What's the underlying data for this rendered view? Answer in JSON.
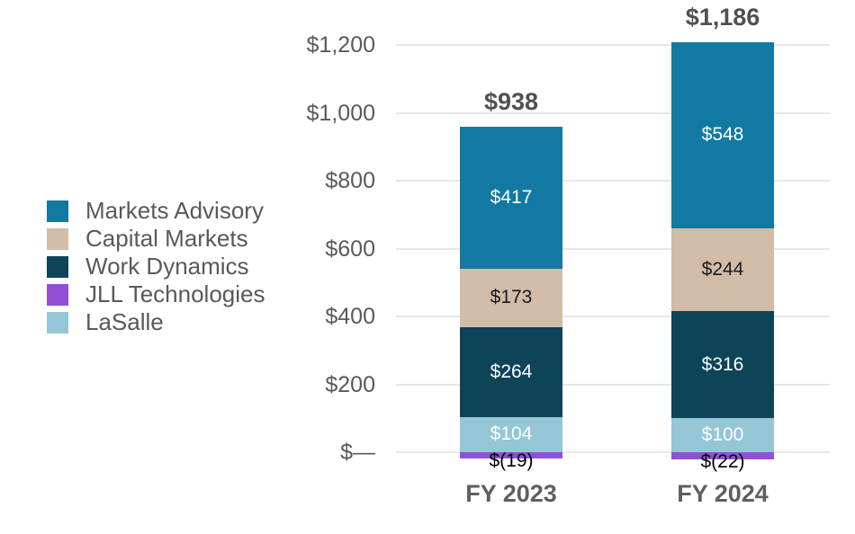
{
  "page": {
    "background_color": "#FFFFFF",
    "axis_text_color": "#58595B",
    "gridline_color": "#E7E7E7",
    "total_text_color": "#4F5052",
    "category_text_color": "#5E5F61"
  },
  "chart_data": {
    "type": "bar",
    "stacked": true,
    "title": "",
    "xlabel": "",
    "ylabel": "",
    "categories": [
      "FY 2023",
      "FY 2024"
    ],
    "series": [
      {
        "name": "Markets Advisory",
        "color": "#1279A3",
        "label_color": "#FFFFFF",
        "values": [
          417,
          548
        ],
        "labels": [
          "$417",
          "$548"
        ]
      },
      {
        "name": "Capital Markets",
        "color": "#D2BCA8",
        "label_color": "#1A1A1A",
        "values": [
          173,
          244
        ],
        "labels": [
          "$173",
          "$244"
        ]
      },
      {
        "name": "Work Dynamics",
        "color": "#0D4458",
        "label_color": "#FFFFFF",
        "values": [
          264,
          316
        ],
        "labels": [
          "$264",
          "$316"
        ]
      },
      {
        "name": "JLL Technologies",
        "color": "#9150D4",
        "label_color": "#000000",
        "values": [
          -19,
          -22
        ],
        "labels": [
          "$(19)",
          "$(22)"
        ]
      },
      {
        "name": "LaSalle",
        "color": "#95C6D6",
        "label_color": "#FFFFFF",
        "values": [
          104,
          100
        ],
        "labels": [
          "$104",
          "$100"
        ]
      }
    ],
    "totals": [
      938,
      1186
    ],
    "total_labels": [
      "$938",
      "$1,186"
    ],
    "y_axis": {
      "min": 0,
      "max": 1200,
      "step": 200,
      "tick_labels": [
        "$—",
        "$200",
        "$400",
        "$600",
        "$800",
        "$1,000",
        "$1,200"
      ]
    },
    "grid": true,
    "legend_position": "left"
  }
}
